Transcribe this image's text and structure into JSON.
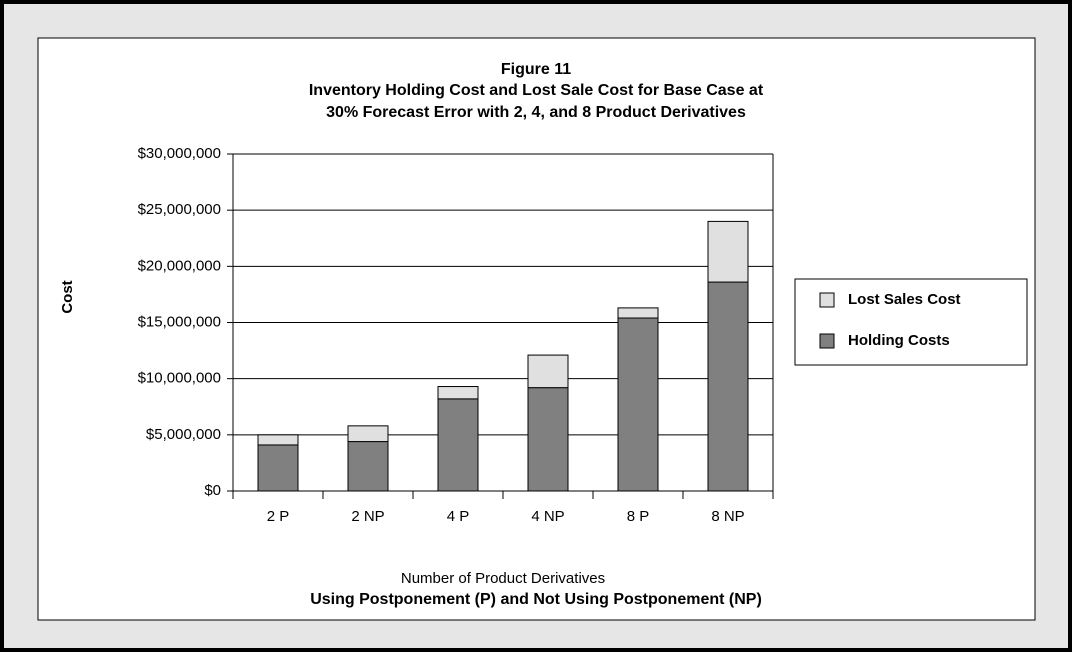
{
  "chart_data": {
    "type": "stacked_bar",
    "title": [
      "Figure 11",
      "Inventory Holding Cost and Lost Sale Cost for Base Case at",
      "30% Forecast Error with 2, 4, and 8 Product Derivatives"
    ],
    "subtitle": "Using Postponement (P) and Not Using Postponement (NP)",
    "x_label": "Number of Product Derivatives",
    "y_label": "Cost",
    "categories": [
      "2 P",
      "2 NP",
      "4 P",
      "4 NP",
      "8 P",
      "8 NP"
    ],
    "series": [
      {
        "name": "Holding Costs",
        "color": "#808080",
        "values": [
          4100000,
          4400000,
          8200000,
          9200000,
          15400000,
          18600000
        ]
      },
      {
        "name": "Lost Sales Cost",
        "color": "#e0e0e0",
        "values": [
          900000,
          1400000,
          1100000,
          2900000,
          900000,
          5400000
        ]
      }
    ],
    "ylim": [
      0,
      30000000
    ],
    "yticks": [
      {
        "value": 0,
        "label": "$0"
      },
      {
        "value": 5000000,
        "label": "$5,000,000"
      },
      {
        "value": 10000000,
        "label": "$10,000,000"
      },
      {
        "value": 15000000,
        "label": "$15,000,000"
      },
      {
        "value": 20000000,
        "label": "$20,000,000"
      },
      {
        "value": 25000000,
        "label": "$25,000,000"
      },
      {
        "value": 30000000,
        "label": "$30,000,000"
      }
    ],
    "grid": true,
    "legend": "right"
  }
}
